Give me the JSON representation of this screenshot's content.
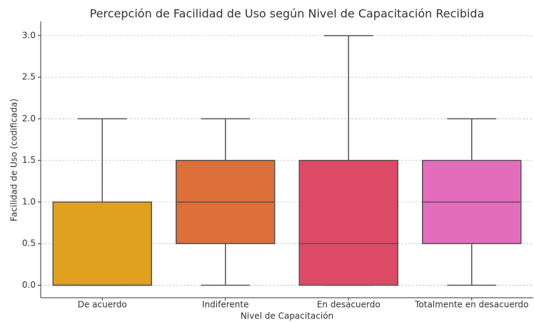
{
  "chart_data": {
    "type": "box",
    "title": "Percepción de Facilidad de Uso según Nivel de Capacitación Recibida",
    "x_label": "Nivel de Capacitación",
    "y_label": "Facilidad de Uso (codificada)",
    "categories": [
      "De acuerdo",
      "Indiferente",
      "En desacuerdo",
      "Totalmente en desacuerdo"
    ],
    "boxes": [
      {
        "min": 0,
        "q1": 0,
        "median": 0,
        "q3": 1,
        "max": 2
      },
      {
        "min": 0,
        "q1": 0.5,
        "median": 1,
        "q3": 1.5,
        "max": 2
      },
      {
        "min": 0,
        "q1": 0,
        "median": 0.5,
        "q3": 1.5,
        "max": 3
      },
      {
        "min": 0,
        "q1": 0.5,
        "median": 1,
        "q3": 1.5,
        "max": 2
      }
    ],
    "colors": [
      "#e0a020",
      "#dc6f3a",
      "#dc4a66",
      "#e36cbd"
    ],
    "ylim": [
      -0.15,
      3.17
    ],
    "yticks": [
      {
        "value": 0,
        "label": "0.0"
      },
      {
        "value": 0.5,
        "label": "0.5"
      },
      {
        "value": 1,
        "label": "1.0"
      },
      {
        "value": 1.5,
        "label": "1.5"
      },
      {
        "value": 2,
        "label": "2.0"
      },
      {
        "value": 2.5,
        "label": "2.5"
      },
      {
        "value": 3,
        "label": "3.0"
      }
    ],
    "grid": true
  }
}
